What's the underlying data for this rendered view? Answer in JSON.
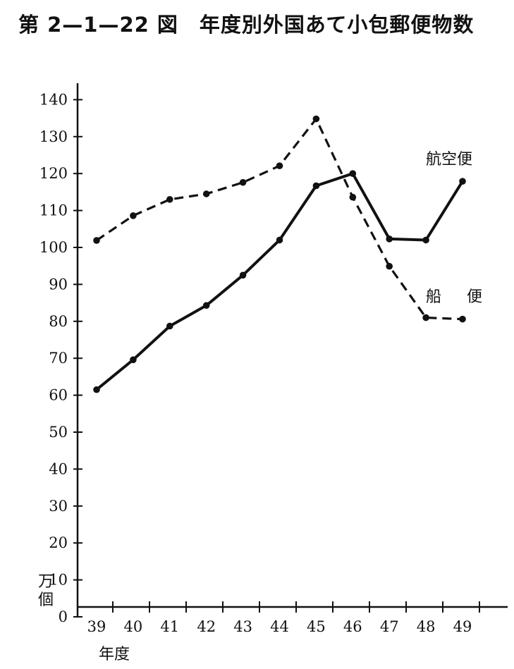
{
  "chart_data": {
    "type": "line",
    "title": "第 2—1—22 図　年度別外国あて小包郵便物数",
    "ylabel": [
      "万",
      "個"
    ],
    "xlabel": "年度",
    "categories": [
      "39",
      "40",
      "41",
      "42",
      "43",
      "44",
      "45",
      "46",
      "47",
      "48",
      "49"
    ],
    "yticks": [
      "0",
      "10",
      "20",
      "30",
      "40",
      "50",
      "60",
      "70",
      "80",
      "90",
      "100",
      "110",
      "120",
      "130",
      "140"
    ],
    "ylim": [
      0,
      145
    ],
    "grid": false,
    "series": [
      {
        "name": "航空便",
        "style": "solid",
        "x": [
          "39",
          "40",
          "41",
          "42",
          "43",
          "44",
          "45",
          "46",
          "47",
          "48",
          "49"
        ],
        "values": [
          61.5,
          69.6,
          78.7,
          84.3,
          92.5,
          102.0,
          116.7,
          120.0,
          102.3,
          102.0,
          117.9
        ]
      },
      {
        "name": "船便",
        "style": "dashed",
        "x": [
          "39",
          "40",
          "41",
          "42",
          "43",
          "44",
          "45",
          "46",
          "47",
          "48",
          "49"
        ],
        "values": [
          101.9,
          108.6,
          113.0,
          114.5,
          117.6,
          122.1,
          134.8,
          113.6,
          94.9,
          81.0,
          80.6
        ]
      }
    ]
  }
}
